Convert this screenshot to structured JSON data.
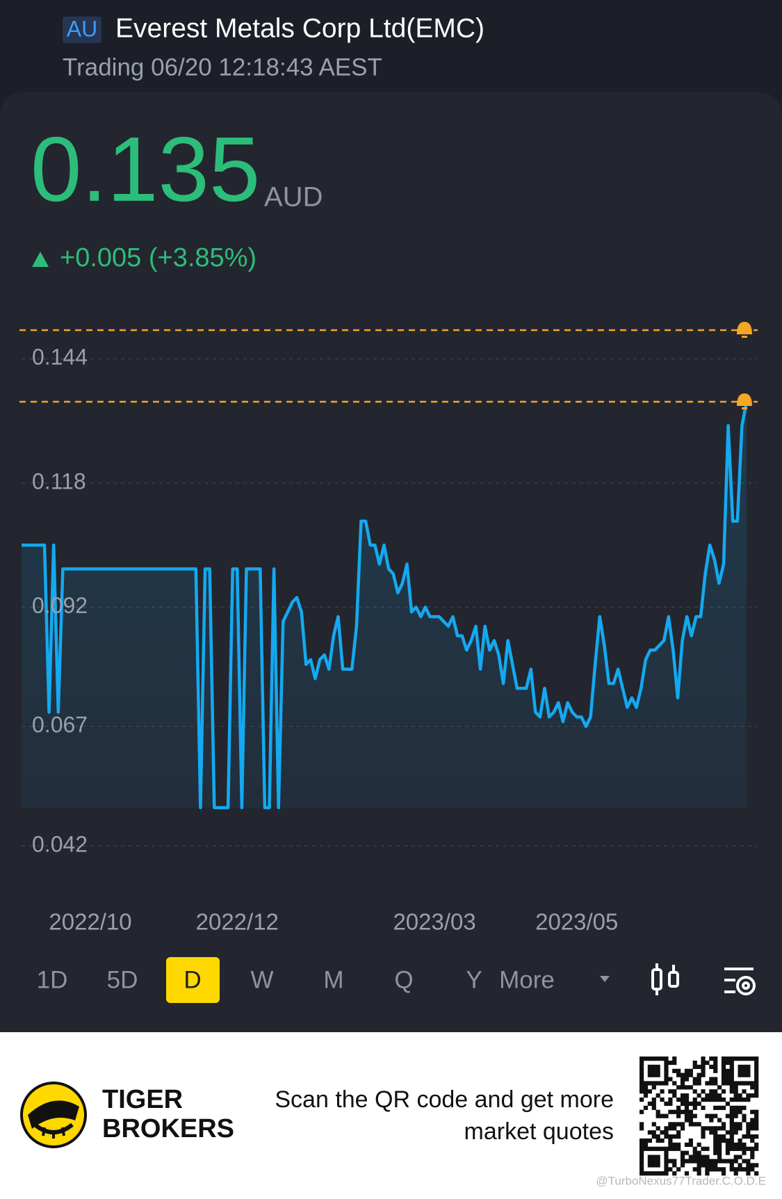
{
  "header": {
    "market": "AU",
    "title": "Everest Metals Corp Ltd(EMC)",
    "status": "Trading 06/20 12:18:43 AEST"
  },
  "quote": {
    "price": "0.135",
    "currency": "AUD",
    "change": "+0.005 (+3.85%)"
  },
  "chart_data": {
    "type": "line",
    "color": "#14a9f0",
    "values": [
      0.105,
      0.105,
      0.105,
      0.105,
      0.105,
      0.105,
      0.07,
      0.105,
      0.07,
      0.1,
      0.1,
      0.1,
      0.1,
      0.1,
      0.1,
      0.1,
      0.1,
      0.1,
      0.1,
      0.1,
      0.1,
      0.1,
      0.1,
      0.1,
      0.1,
      0.1,
      0.1,
      0.1,
      0.1,
      0.1,
      0.1,
      0.1,
      0.1,
      0.1,
      0.1,
      0.1,
      0.1,
      0.1,
      0.1,
      0.05,
      0.1,
      0.1,
      0.05,
      0.05,
      0.05,
      0.05,
      0.1,
      0.1,
      0.05,
      0.1,
      0.1,
      0.1,
      0.1,
      0.05,
      0.05,
      0.1,
      0.05,
      0.089,
      0.091,
      0.093,
      0.094,
      0.091,
      0.08,
      0.081,
      0.077,
      0.081,
      0.082,
      0.079,
      0.086,
      0.09,
      0.079,
      0.079,
      0.079,
      0.088,
      0.11,
      0.11,
      0.105,
      0.105,
      0.101,
      0.105,
      0.1,
      0.099,
      0.095,
      0.097,
      0.101,
      0.091,
      0.092,
      0.09,
      0.092,
      0.09,
      0.09,
      0.09,
      0.089,
      0.088,
      0.09,
      0.086,
      0.086,
      0.083,
      0.085,
      0.088,
      0.079,
      0.088,
      0.083,
      0.085,
      0.082,
      0.076,
      0.085,
      0.08,
      0.075,
      0.075,
      0.075,
      0.079,
      0.07,
      0.069,
      0.075,
      0.069,
      0.07,
      0.072,
      0.068,
      0.072,
      0.07,
      0.069,
      0.069,
      0.067,
      0.069,
      0.08,
      0.09,
      0.084,
      0.076,
      0.076,
      0.079,
      0.075,
      0.071,
      0.073,
      0.071,
      0.075,
      0.081,
      0.083,
      0.083,
      0.084,
      0.085,
      0.09,
      0.083,
      0.073,
      0.085,
      0.09,
      0.086,
      0.09,
      0.09,
      0.099,
      0.105,
      0.102,
      0.097,
      0.101,
      0.13,
      0.11,
      0.11,
      0.13,
      0.135
    ],
    "xlim": [
      0,
      158
    ],
    "xticks": [
      {
        "value": 15,
        "label": "2022/10"
      },
      {
        "value": 47,
        "label": "2022/12"
      },
      {
        "value": 90,
        "label": "2023/03"
      },
      {
        "value": 121,
        "label": "2023/05"
      }
    ],
    "ylim": [
      0.042,
      0.15
    ],
    "yticks": [
      0.042,
      0.067,
      0.092,
      0.118,
      0.144
    ],
    "grid": true,
    "alert_lines": [
      0.15,
      0.135
    ],
    "alert_color": "#f5a623"
  },
  "periods": [
    "1D",
    "5D",
    "D",
    "W",
    "M",
    "Q",
    "Y",
    "More"
  ],
  "active_period": 2,
  "footer": {
    "brand": [
      "TIGER",
      "BROKERS"
    ],
    "cta": [
      "Scan the QR code and get more",
      "market quotes"
    ],
    "watermark": "@TurboNexus77Trader.C.O.D.E"
  }
}
